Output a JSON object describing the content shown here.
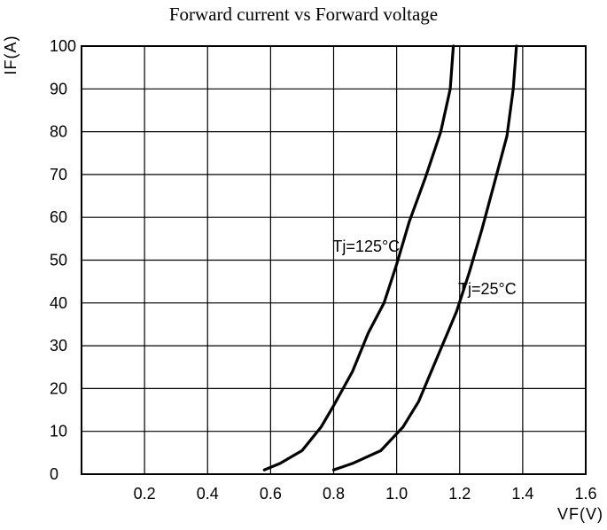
{
  "chart_data": {
    "type": "line",
    "title": "Forward current vs Forward voltage",
    "xlabel": "VF(V)",
    "ylabel": "IF(A)",
    "xlim": [
      0,
      1.6
    ],
    "ylim": [
      0,
      100
    ],
    "x_ticks": [
      "0.2",
      "0.4",
      "0.6",
      "0.8",
      "1.0",
      "1.2",
      "1.4",
      "1.6"
    ],
    "y_ticks": [
      "0",
      "10",
      "20",
      "30",
      "40",
      "50",
      "60",
      "70",
      "80",
      "90",
      "100"
    ],
    "grid": true,
    "series": [
      {
        "name": "Tj=125°C",
        "points": [
          [
            0.58,
            1
          ],
          [
            0.63,
            2.5
          ],
          [
            0.7,
            5.5
          ],
          [
            0.76,
            11
          ],
          [
            0.8,
            16
          ],
          [
            0.86,
            24
          ],
          [
            0.91,
            33
          ],
          [
            0.96,
            40
          ],
          [
            1.0,
            49
          ],
          [
            1.04,
            59
          ],
          [
            1.09,
            69
          ],
          [
            1.14,
            80
          ],
          [
            1.17,
            90
          ],
          [
            1.18,
            100
          ]
        ],
        "label": "Tj=125°C"
      },
      {
        "name": "Tj=25°C",
        "points": [
          [
            0.8,
            1
          ],
          [
            0.86,
            2.5
          ],
          [
            0.95,
            5.5
          ],
          [
            1.02,
            11
          ],
          [
            1.07,
            17
          ],
          [
            1.11,
            24
          ],
          [
            1.15,
            31
          ],
          [
            1.19,
            38
          ],
          [
            1.23,
            47
          ],
          [
            1.27,
            57
          ],
          [
            1.31,
            68
          ],
          [
            1.35,
            79
          ],
          [
            1.37,
            90
          ],
          [
            1.38,
            100
          ]
        ],
        "label": "Tj=25°C"
      }
    ]
  }
}
